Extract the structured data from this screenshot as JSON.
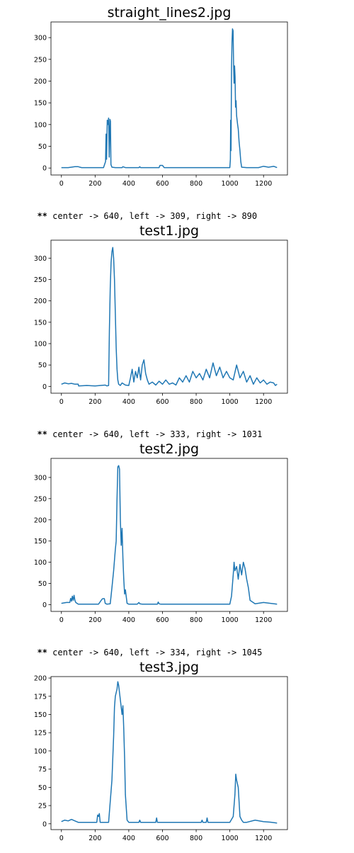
{
  "chart_data": [
    {
      "type": "line",
      "title": "straight_lines2.jpg",
      "xlim": [
        -62,
        1342
      ],
      "ylim": [
        -16,
        336
      ],
      "xticks": [
        0,
        200,
        400,
        600,
        800,
        1000,
        1200
      ],
      "yticks": [
        0,
        50,
        100,
        150,
        200,
        250,
        300
      ],
      "line_color": "#1f77b4",
      "grid": false,
      "x": [
        0,
        40,
        80,
        100,
        120,
        250,
        262,
        265,
        268,
        272,
        276,
        280,
        284,
        288,
        291,
        294,
        300,
        320,
        360,
        365,
        380,
        460,
        465,
        470,
        580,
        585,
        600,
        610,
        1000,
        1003,
        1005,
        1007,
        1010,
        1013,
        1016,
        1019,
        1022,
        1025,
        1028,
        1031,
        1034,
        1037,
        1040,
        1043,
        1046,
        1050,
        1055,
        1060,
        1065,
        1070,
        1100,
        1170,
        1200,
        1230,
        1260,
        1280
      ],
      "values": [
        1,
        1,
        3,
        3,
        1,
        1,
        15,
        78,
        20,
        110,
        100,
        115,
        25,
        112,
        108,
        8,
        2,
        1,
        1,
        3,
        1,
        1,
        3,
        1,
        1,
        6,
        6,
        1,
        1,
        20,
        110,
        40,
        230,
        290,
        320,
        316,
        240,
        195,
        235,
        210,
        140,
        155,
        120,
        110,
        100,
        90,
        60,
        40,
        15,
        2,
        1,
        1,
        4,
        2,
        4,
        1
      ]
    },
    {
      "type": "line",
      "title": "test1.jpg",
      "xlim": [
        -62,
        1342
      ],
      "ylim": [
        -16,
        342
      ],
      "xticks": [
        0,
        200,
        400,
        600,
        800,
        1000,
        1200
      ],
      "yticks": [
        0,
        50,
        100,
        150,
        200,
        250,
        300
      ],
      "line_color": "#1f77b4",
      "grid": false,
      "x": [
        0,
        20,
        40,
        60,
        80,
        100,
        102,
        150,
        200,
        260,
        270,
        280,
        285,
        290,
        295,
        300,
        305,
        310,
        315,
        320,
        325,
        330,
        335,
        340,
        350,
        360,
        380,
        400,
        410,
        420,
        430,
        440,
        450,
        460,
        470,
        480,
        490,
        500,
        510,
        520,
        540,
        560,
        580,
        600,
        620,
        640,
        660,
        680,
        700,
        720,
        740,
        760,
        780,
        800,
        820,
        840,
        860,
        880,
        900,
        920,
        940,
        960,
        980,
        1000,
        1020,
        1040,
        1060,
        1080,
        1100,
        1120,
        1140,
        1160,
        1180,
        1200,
        1220,
        1240,
        1260,
        1270,
        1280
      ],
      "values": [
        5,
        8,
        6,
        7,
        5,
        5,
        1,
        2,
        1,
        3,
        1,
        2,
        130,
        230,
        290,
        315,
        325,
        300,
        250,
        170,
        90,
        40,
        15,
        5,
        2,
        8,
        3,
        2,
        20,
        40,
        10,
        35,
        20,
        45,
        15,
        50,
        62,
        30,
        15,
        5,
        10,
        3,
        12,
        5,
        15,
        5,
        8,
        3,
        20,
        10,
        25,
        10,
        35,
        20,
        30,
        15,
        40,
        20,
        55,
        25,
        45,
        20,
        35,
        20,
        15,
        50,
        20,
        35,
        10,
        25,
        5,
        20,
        8,
        15,
        5,
        10,
        8,
        2,
        5
      ]
    },
    {
      "type": "line",
      "title": "test2.jpg",
      "xlim": [
        -62,
        1342
      ],
      "ylim": [
        -16,
        345
      ],
      "xticks": [
        0,
        200,
        400,
        600,
        800,
        1000,
        1200
      ],
      "yticks": [
        0,
        50,
        100,
        150,
        200,
        250,
        300
      ],
      "line_color": "#1f77b4",
      "grid": false,
      "x": [
        0,
        30,
        50,
        55,
        60,
        65,
        70,
        75,
        80,
        85,
        100,
        220,
        240,
        245,
        255,
        260,
        270,
        290,
        300,
        310,
        320,
        325,
        330,
        335,
        340,
        345,
        350,
        355,
        360,
        365,
        370,
        375,
        380,
        390,
        400,
        450,
        460,
        465,
        480,
        570,
        575,
        580,
        590,
        1000,
        1010,
        1020,
        1025,
        1030,
        1040,
        1050,
        1060,
        1070,
        1080,
        1090,
        1100,
        1110,
        1120,
        1150,
        1200,
        1280
      ],
      "values": [
        3,
        5,
        5,
        15,
        8,
        20,
        10,
        22,
        10,
        5,
        1,
        1,
        12,
        14,
        14,
        3,
        1,
        2,
        40,
        80,
        130,
        150,
        250,
        325,
        328,
        320,
        200,
        140,
        180,
        110,
        60,
        25,
        35,
        3,
        1,
        1,
        5,
        2,
        1,
        1,
        6,
        2,
        1,
        1,
        20,
        70,
        100,
        80,
        90,
        60,
        95,
        70,
        100,
        85,
        60,
        40,
        10,
        2,
        5,
        1
      ]
    },
    {
      "type": "line",
      "title": "test3.jpg",
      "xlim": [
        -62,
        1342
      ],
      "ylim": [
        -8,
        202
      ],
      "xticks": [
        0,
        200,
        400,
        600,
        800,
        1000,
        1200
      ],
      "yticks": [
        0,
        25,
        50,
        75,
        100,
        125,
        150,
        175,
        200
      ],
      "line_color": "#1f77b4",
      "grid": false,
      "x": [
        0,
        20,
        40,
        60,
        80,
        100,
        210,
        215,
        220,
        225,
        230,
        280,
        300,
        310,
        315,
        320,
        330,
        335,
        340,
        345,
        350,
        355,
        360,
        365,
        370,
        375,
        380,
        390,
        400,
        460,
        465,
        470,
        560,
        565,
        570,
        600,
        830,
        835,
        840,
        860,
        865,
        870,
        1000,
        1020,
        1030,
        1035,
        1040,
        1045,
        1050,
        1055,
        1060,
        1070,
        1080,
        1100,
        1150,
        1200,
        1250,
        1280
      ],
      "values": [
        3,
        5,
        4,
        6,
        4,
        2,
        2,
        12,
        10,
        14,
        2,
        2,
        60,
        120,
        160,
        175,
        185,
        195,
        190,
        180,
        170,
        160,
        150,
        162,
        130,
        90,
        40,
        5,
        2,
        2,
        5,
        2,
        2,
        8,
        2,
        2,
        2,
        5,
        2,
        2,
        8,
        2,
        2,
        10,
        40,
        68,
        60,
        55,
        50,
        30,
        10,
        5,
        2,
        2,
        5,
        3,
        2,
        1
      ]
    }
  ],
  "outputs": [
    {
      "prefix": "**",
      "text": " center -> 640, left -> 309, right -> 890"
    },
    {
      "prefix": "**",
      "text": " center -> 640, left -> 333, right -> 1031"
    },
    {
      "prefix": "**",
      "text": " center -> 640, left -> 334, right -> 1045"
    }
  ]
}
